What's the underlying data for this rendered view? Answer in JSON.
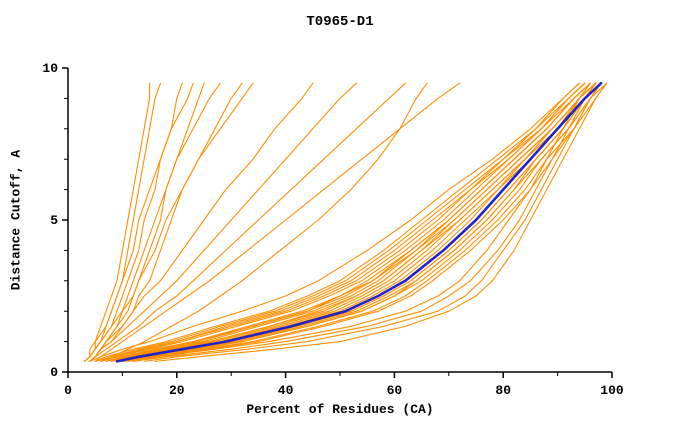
{
  "chart_data": {
    "type": "line",
    "title": "T0965-D1",
    "xlabel": "Percent of Residues (CA)",
    "ylabel": "Distance Cutoff, A",
    "xlim": [
      0,
      100
    ],
    "ylim": [
      0,
      10
    ],
    "grid": false,
    "legend": "none",
    "x_ticks": {
      "major": [
        0,
        20,
        40,
        60,
        80,
        100
      ],
      "minor": [
        10,
        30,
        50,
        70,
        90
      ]
    },
    "y_ticks": {
      "major": [
        0,
        5,
        10
      ],
      "minor": [
        1,
        2,
        3,
        4,
        6,
        7,
        8,
        9
      ]
    },
    "colors": {
      "model": "#FF8F00",
      "median": "#2222CC",
      "axis": "#000000",
      "text": "#000000"
    },
    "cutoffs": [
      0.35,
      0.5,
      0.75,
      1,
      1.5,
      2,
      2.5,
      3,
      4,
      5,
      6,
      7,
      8,
      9,
      9.5
    ],
    "series_note": "each orange series lists percent-of-residues at the cutoffs above",
    "series": [
      [
        3,
        4,
        4,
        5,
        6,
        7,
        8,
        9,
        10,
        11,
        12,
        13,
        14,
        15,
        15
      ],
      [
        3,
        4,
        5,
        6,
        7,
        8,
        9,
        10,
        11,
        12,
        13,
        14,
        15,
        16,
        17
      ],
      [
        3,
        4,
        5,
        6,
        8,
        9,
        10,
        11,
        13,
        14,
        16,
        17,
        19,
        20,
        21
      ],
      [
        3,
        4,
        5,
        5,
        7,
        8,
        9,
        10,
        12,
        13,
        15,
        17,
        19,
        22,
        23
      ],
      [
        4,
        5,
        6,
        7,
        9,
        11,
        12,
        13,
        15,
        17,
        18,
        20,
        22,
        24,
        25
      ],
      [
        3,
        4,
        5,
        6,
        8,
        10,
        11,
        12,
        14,
        16,
        18,
        20,
        23,
        26,
        28
      ],
      [
        4,
        5,
        6,
        8,
        10,
        12,
        13,
        15,
        17,
        19,
        21,
        24,
        27,
        30,
        32
      ],
      [
        4,
        5,
        6,
        7,
        9,
        10,
        12,
        13,
        16,
        18,
        21,
        24,
        28,
        32,
        34
      ],
      [
        4,
        5,
        6,
        7,
        10,
        12,
        14,
        17,
        21,
        25,
        29,
        34,
        38,
        43,
        45
      ],
      [
        4,
        5,
        6,
        8,
        11,
        14,
        17,
        20,
        25,
        30,
        35,
        40,
        45,
        50,
        53
      ],
      [
        4,
        5,
        7,
        9,
        13,
        16,
        20,
        23,
        29,
        35,
        41,
        47,
        53,
        59,
        62
      ],
      [
        5,
        6,
        8,
        10,
        14,
        18,
        22,
        26,
        33,
        40,
        47,
        54,
        61,
        68,
        72
      ],
      [
        6,
        8,
        11,
        14,
        19,
        24,
        28,
        32,
        39,
        46,
        52,
        57,
        61,
        64,
        66
      ],
      [
        4,
        6,
        10,
        15,
        23,
        32,
        40,
        46,
        55,
        63,
        70,
        78,
        85,
        91,
        94
      ],
      [
        5,
        7,
        12,
        18,
        27,
        37,
        44,
        50,
        58,
        65,
        72,
        79,
        86,
        91,
        94
      ],
      [
        5,
        8,
        13,
        19,
        28,
        38,
        45,
        51,
        59,
        66,
        73,
        80,
        86,
        92,
        95
      ],
      [
        6,
        8,
        14,
        20,
        29,
        39,
        46,
        52,
        60,
        67,
        74,
        81,
        87,
        92,
        95
      ],
      [
        6,
        9,
        14,
        20,
        30,
        40,
        47,
        53,
        61,
        68,
        74,
        80,
        87,
        92,
        95
      ],
      [
        6,
        9,
        15,
        21,
        31,
        41,
        48,
        54,
        62,
        69,
        75,
        81,
        87,
        93,
        96
      ],
      [
        7,
        10,
        16,
        23,
        33,
        43,
        50,
        55,
        63,
        70,
        76,
        82,
        88,
        93,
        96
      ],
      [
        7,
        10,
        17,
        23,
        34,
        44,
        50,
        56,
        63,
        70,
        76,
        82,
        88,
        93,
        96
      ],
      [
        7,
        11,
        17,
        24,
        34,
        44,
        51,
        56,
        64,
        71,
        77,
        83,
        89,
        94,
        97
      ],
      [
        8,
        11,
        18,
        25,
        35,
        45,
        52,
        57,
        64,
        70,
        76,
        82,
        88,
        93,
        96
      ],
      [
        8,
        12,
        19,
        26,
        37,
        46,
        53,
        58,
        65,
        72,
        78,
        84,
        89,
        94,
        96
      ],
      [
        8,
        12,
        19,
        26,
        37,
        47,
        53,
        58,
        65,
        71,
        77,
        83,
        89,
        94,
        97
      ],
      [
        8,
        12,
        20,
        27,
        38,
        48,
        54,
        59,
        66,
        72,
        78,
        84,
        90,
        94,
        97
      ],
      [
        9,
        13,
        20,
        28,
        39,
        49,
        55,
        60,
        67,
        73,
        79,
        84,
        90,
        94,
        97
      ],
      [
        9,
        13,
        21,
        28,
        40,
        50,
        56,
        61,
        68,
        74,
        79,
        85,
        90,
        94,
        97
      ],
      [
        9,
        13,
        22,
        30,
        42,
        52,
        58,
        63,
        70,
        76,
        81,
        86,
        91,
        95,
        97
      ],
      [
        9,
        14,
        22,
        30,
        42,
        52,
        58,
        63,
        70,
        76,
        81,
        86,
        91,
        95,
        97
      ],
      [
        10,
        14,
        23,
        31,
        43,
        53,
        59,
        64,
        71,
        77,
        82,
        86,
        91,
        95,
        98
      ],
      [
        10,
        15,
        23,
        32,
        44,
        54,
        60,
        64,
        71,
        77,
        82,
        87,
        92,
        96,
        98
      ],
      [
        10,
        15,
        24,
        32,
        44,
        54,
        60,
        65,
        72,
        78,
        83,
        87,
        92,
        96,
        98
      ],
      [
        11,
        16,
        25,
        34,
        46,
        56,
        62,
        66,
        73,
        79,
        84,
        88,
        93,
        96,
        99
      ],
      [
        12,
        17,
        26,
        35,
        47,
        57,
        63,
        67,
        74,
        80,
        85,
        89,
        93,
        97,
        99
      ],
      [
        10,
        16,
        27,
        37,
        52,
        62,
        68,
        72,
        77,
        81,
        85,
        88,
        91,
        94,
        96
      ],
      [
        12,
        18,
        30,
        40,
        55,
        65,
        70,
        74,
        79,
        83,
        86,
        89,
        92,
        95,
        97
      ],
      [
        14,
        20,
        33,
        44,
        58,
        68,
        73,
        76,
        80,
        84,
        87,
        90,
        93,
        96,
        98
      ],
      [
        16,
        24,
        38,
        50,
        62,
        70,
        75,
        78,
        82,
        85,
        88,
        91,
        94,
        97,
        99
      ]
    ],
    "median_series": [
      9,
      13,
      21,
      29,
      41,
      51,
      57,
      62,
      69,
      75,
      80,
      85,
      90,
      95,
      98
    ]
  }
}
